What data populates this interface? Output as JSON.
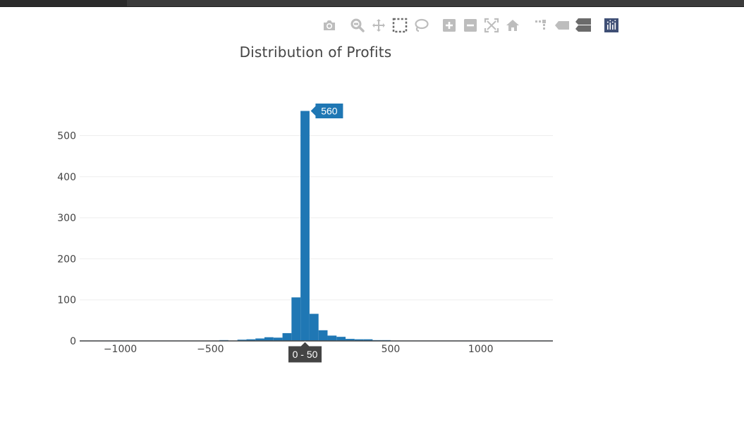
{
  "colors": {
    "bar": "#1f77b4",
    "grid": "#eeeeee",
    "axis": "#444444",
    "tick_text": "#444444",
    "icon": "#bdbdbd",
    "icon_dark": "#6b6b6b",
    "icon_logo": "#3f4f75",
    "hover_bg": "#1f77b4",
    "hover_x_bg": "#444444"
  },
  "modebar": {
    "buttons": [
      {
        "name": "download-plot-button",
        "icon": "camera-icon",
        "group": 1
      },
      {
        "name": "zoom-button",
        "icon": "zoom-icon",
        "group": 2
      },
      {
        "name": "pan-button",
        "icon": "pan-icon",
        "group": 2
      },
      {
        "name": "box-select-button",
        "icon": "box-select-icon",
        "group": 2
      },
      {
        "name": "lasso-select-button",
        "icon": "lasso-icon",
        "group": 2
      },
      {
        "name": "zoom-in-button",
        "icon": "zoom-in-icon",
        "group": 3
      },
      {
        "name": "zoom-out-button",
        "icon": "zoom-out-icon",
        "group": 3
      },
      {
        "name": "autoscale-button",
        "icon": "autoscale-icon",
        "group": 3
      },
      {
        "name": "reset-axes-button",
        "icon": "home-icon",
        "group": 3
      },
      {
        "name": "toggle-spike-lines-button",
        "icon": "spike-lines-icon",
        "group": 4
      },
      {
        "name": "hover-closest-button",
        "icon": "hover-closest-icon",
        "group": 4
      },
      {
        "name": "hover-compare-button",
        "icon": "hover-compare-icon",
        "group": 4
      },
      {
        "name": "plotly-logo-link",
        "icon": "plotly-logo-icon",
        "group": 5
      }
    ]
  },
  "chart_data": {
    "type": "bar",
    "title": "Distribution of Profits",
    "xlabel": "",
    "ylabel": "",
    "bin_size": 50,
    "xlim": [
      -1225,
      1400
    ],
    "ylim": [
      0,
      590
    ],
    "xticks": [
      -1000,
      -500,
      500,
      1000
    ],
    "xtick_labels": [
      "−1000",
      "−500",
      "500",
      "1000"
    ],
    "yticks": [
      0,
      100,
      200,
      300,
      400,
      500
    ],
    "ytick_labels": [
      "0",
      "100",
      "200",
      "300",
      "400",
      "500"
    ],
    "grid": true,
    "legend": "none",
    "bins": [
      {
        "x0": -1250,
        "y": 1
      },
      {
        "x0": -1200,
        "y": 1
      },
      {
        "x0": -1150,
        "y": 1
      },
      {
        "x0": -1100,
        "y": 1
      },
      {
        "x0": -1050,
        "y": 1
      },
      {
        "x0": -1000,
        "y": 1
      },
      {
        "x0": -950,
        "y": 1
      },
      {
        "x0": -900,
        "y": 1
      },
      {
        "x0": -850,
        "y": 1
      },
      {
        "x0": -800,
        "y": 1
      },
      {
        "x0": -750,
        "y": 1
      },
      {
        "x0": -700,
        "y": 1
      },
      {
        "x0": -650,
        "y": 1
      },
      {
        "x0": -600,
        "y": 1
      },
      {
        "x0": -550,
        "y": 1
      },
      {
        "x0": -500,
        "y": 1
      },
      {
        "x0": -450,
        "y": 2
      },
      {
        "x0": -400,
        "y": 1
      },
      {
        "x0": -350,
        "y": 3
      },
      {
        "x0": -300,
        "y": 4
      },
      {
        "x0": -250,
        "y": 6
      },
      {
        "x0": -200,
        "y": 9
      },
      {
        "x0": -150,
        "y": 8
      },
      {
        "x0": -100,
        "y": 19
      },
      {
        "x0": -50,
        "y": 106
      },
      {
        "x0": 0,
        "y": 560
      },
      {
        "x0": 50,
        "y": 66
      },
      {
        "x0": 100,
        "y": 26
      },
      {
        "x0": 150,
        "y": 13
      },
      {
        "x0": 200,
        "y": 10
      },
      {
        "x0": 250,
        "y": 5
      },
      {
        "x0": 300,
        "y": 4
      },
      {
        "x0": 350,
        "y": 4
      },
      {
        "x0": 400,
        "y": 2
      },
      {
        "x0": 450,
        "y": 2
      },
      {
        "x0": 500,
        "y": 1
      },
      {
        "x0": 550,
        "y": 1
      },
      {
        "x0": 600,
        "y": 1
      },
      {
        "x0": 650,
        "y": 1
      },
      {
        "x0": 700,
        "y": 1
      },
      {
        "x0": 750,
        "y": 1
      },
      {
        "x0": 800,
        "y": 1
      },
      {
        "x0": 850,
        "y": 1
      },
      {
        "x0": 900,
        "y": 1
      },
      {
        "x0": 950,
        "y": 1
      },
      {
        "x0": 1000,
        "y": 1
      },
      {
        "x0": 1050,
        "y": 1
      },
      {
        "x0": 1100,
        "y": 1
      },
      {
        "x0": 1150,
        "y": 1
      },
      {
        "x0": 1200,
        "y": 1
      },
      {
        "x0": 1250,
        "y": 1
      },
      {
        "x0": 1300,
        "y": 1
      },
      {
        "x0": 1350,
        "y": 1
      }
    ],
    "hover": {
      "bin_x0": 0,
      "value_label": "560",
      "x_label": "0 - 50"
    }
  }
}
